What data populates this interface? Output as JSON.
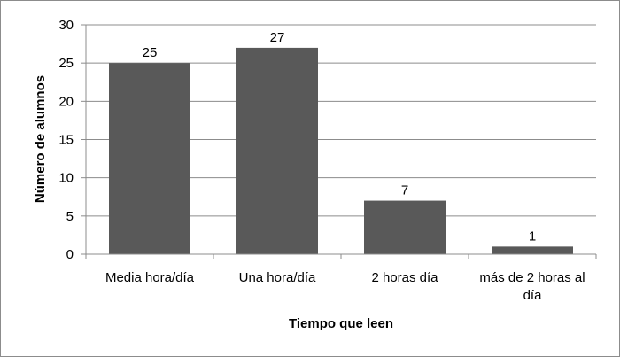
{
  "chart_data": {
    "type": "bar",
    "categories": [
      [
        "Media hora/día"
      ],
      [
        "Una hora/día"
      ],
      [
        "2 horas día"
      ],
      [
        "más de 2 horas al",
        "día"
      ]
    ],
    "values": [
      25,
      27,
      7,
      1
    ],
    "title": "",
    "xlabel": "Tiempo que leen",
    "ylabel": "Número de alumnos",
    "ylim": [
      0,
      30
    ],
    "yticks": [
      0,
      5,
      10,
      15,
      20,
      25,
      30
    ],
    "grid": true,
    "legend": "none",
    "bar_color": "#595959",
    "grid_color": "#8c8c8c"
  }
}
